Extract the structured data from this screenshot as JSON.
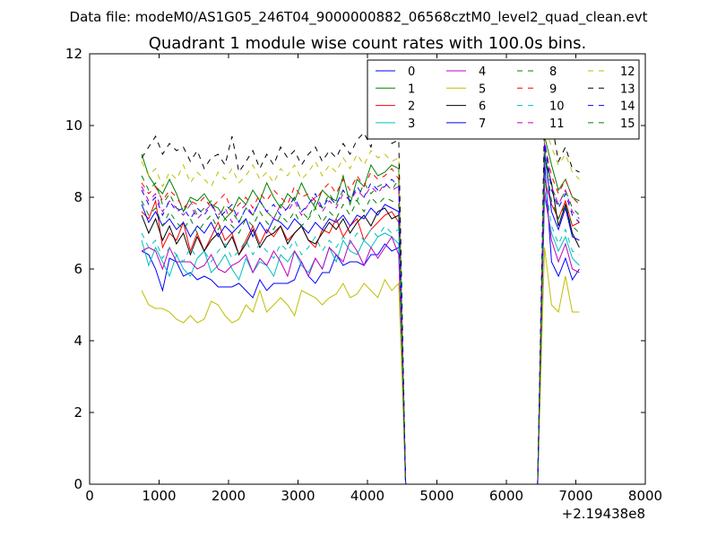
{
  "figure": {
    "suptitle": "Data file: modeM0/AS1G05_246T04_9000000882_06568cztM0_level2_quad_clean.evt",
    "title": "Quadrant 1 module wise count rates with 100.0s bins."
  },
  "chart_data": {
    "type": "line",
    "title": "Quadrant 1 module wise count rates with 100.0s bins.",
    "xlabel": "",
    "ylabel": "",
    "xlim": [
      0,
      8000
    ],
    "ylim": [
      0,
      12
    ],
    "x_ticks": [
      0,
      1000,
      2000,
      3000,
      4000,
      5000,
      6000,
      7000,
      8000
    ],
    "y_ticks": [
      0,
      2,
      4,
      6,
      8,
      10,
      12
    ],
    "x_offset_label": "+2.19438e8",
    "grid": false,
    "legend": {
      "placement": "top-right",
      "columns": 4
    },
    "x": [
      750,
      850,
      950,
      1050,
      1150,
      1250,
      1350,
      1450,
      1550,
      1650,
      1750,
      1850,
      1950,
      2050,
      2150,
      2250,
      2350,
      2450,
      2550,
      2650,
      2750,
      2850,
      2950,
      3050,
      3150,
      3250,
      3350,
      3450,
      3550,
      3650,
      3750,
      3850,
      3950,
      4050,
      4150,
      4250,
      4350,
      4450,
      4550,
      4650,
      4750,
      4850,
      4950,
      5050,
      5150,
      5250,
      5350,
      5450,
      5550,
      5650,
      5750,
      5850,
      5950,
      6050,
      6150,
      6250,
      6350,
      6450,
      6550,
      6650,
      6750,
      6850,
      6950,
      7050
    ],
    "series": [
      {
        "name": "0",
        "color": "#0000ff",
        "dash": "solid",
        "values": [
          6.5,
          6.4,
          6.0,
          5.4,
          6.3,
          6.2,
          5.8,
          5.9,
          5.7,
          5.8,
          5.7,
          5.5,
          5.5,
          5.5,
          5.6,
          5.4,
          5.2,
          5.7,
          5.4,
          5.6,
          5.6,
          5.6,
          5.7,
          6.2,
          5.8,
          5.6,
          5.9,
          5.9,
          6.4,
          6.1,
          6.2,
          6.2,
          6.1,
          6.4,
          6.4,
          6.7,
          6.5,
          6.6,
          0,
          0,
          0,
          0,
          0,
          0,
          0,
          0,
          0,
          0,
          0,
          0,
          0,
          0,
          0,
          0,
          0,
          0,
          0,
          0,
          9.0,
          6.2,
          5.8,
          6.3,
          5.7,
          6.0
        ]
      },
      {
        "name": "1",
        "color": "#008000",
        "dash": "solid",
        "values": [
          9.2,
          8.6,
          8.3,
          8.1,
          8.5,
          8.1,
          7.6,
          8.0,
          7.9,
          8.1,
          7.8,
          7.7,
          7.4,
          7.6,
          8.0,
          7.8,
          8.2,
          7.9,
          8.4,
          8.0,
          7.7,
          8.1,
          7.9,
          8.4,
          8.0,
          7.7,
          8.2,
          8.0,
          7.9,
          8.6,
          7.8,
          8.5,
          8.3,
          8.9,
          8.6,
          8.7,
          8.9,
          8.8,
          0,
          0,
          0,
          0,
          0,
          0,
          0,
          0,
          0,
          0,
          0,
          0,
          0,
          0,
          0,
          0,
          0,
          0,
          0,
          0,
          9.7,
          8.9,
          8.2,
          8.5,
          8.0,
          7.9
        ]
      },
      {
        "name": "2",
        "color": "#ff0000",
        "dash": "solid",
        "values": [
          7.6,
          7.4,
          7.9,
          6.6,
          7.0,
          6.8,
          7.3,
          6.5,
          7.0,
          6.5,
          6.9,
          7.3,
          6.8,
          7.0,
          6.4,
          6.8,
          7.2,
          6.7,
          7.1,
          6.9,
          7.2,
          6.8,
          7.0,
          7.2,
          6.8,
          6.6,
          7.1,
          7.0,
          7.4,
          6.9,
          7.2,
          7.4,
          6.8,
          7.1,
          7.3,
          7.5,
          7.6,
          7.3,
          0,
          0,
          0,
          0,
          0,
          0,
          0,
          0,
          0,
          0,
          0,
          0,
          0,
          0,
          0,
          0,
          0,
          0,
          0,
          0,
          8.5,
          7.8,
          7.4,
          7.9,
          7.2,
          7.3
        ]
      },
      {
        "name": "3",
        "color": "#00bfbf",
        "dash": "solid",
        "values": [
          6.8,
          6.1,
          6.6,
          6.2,
          5.8,
          6.4,
          6.0,
          5.8,
          6.3,
          6.5,
          5.9,
          6.1,
          6.4,
          6.0,
          5.7,
          6.3,
          5.9,
          6.2,
          6.1,
          5.8,
          6.4,
          6.2,
          6.5,
          6.1,
          5.9,
          6.3,
          6.0,
          6.6,
          6.2,
          6.8,
          6.5,
          6.4,
          6.8,
          6.6,
          6.9,
          7.0,
          6.9,
          6.7,
          0,
          0,
          0,
          0,
          0,
          0,
          0,
          0,
          0,
          0,
          0,
          0,
          0,
          0,
          0,
          0,
          0,
          0,
          0,
          0,
          8.0,
          7.0,
          6.5,
          6.9,
          6.3,
          6.1
        ]
      },
      {
        "name": "4",
        "color": "#bf00bf",
        "dash": "solid",
        "values": [
          6.5,
          6.6,
          6.5,
          6.0,
          6.6,
          6.2,
          6.2,
          6.2,
          6.0,
          6.1,
          6.4,
          6.0,
          5.9,
          6.1,
          6.2,
          6.4,
          5.9,
          6.3,
          6.1,
          6.5,
          6.2,
          5.8,
          6.5,
          6.2,
          5.8,
          6.3,
          6.0,
          6.6,
          6.4,
          6.2,
          6.8,
          6.5,
          6.1,
          6.6,
          6.3,
          6.6,
          6.9,
          6.4,
          0,
          0,
          0,
          0,
          0,
          0,
          0,
          0,
          0,
          0,
          0,
          0,
          0,
          0,
          0,
          0,
          0,
          0,
          0,
          0,
          8.2,
          6.8,
          6.2,
          6.7,
          6.0,
          5.9
        ]
      },
      {
        "name": "5",
        "color": "#bfbf00",
        "dash": "solid",
        "values": [
          5.4,
          5.0,
          4.9,
          4.9,
          4.8,
          4.6,
          4.5,
          4.7,
          4.5,
          4.6,
          5.1,
          5.0,
          4.7,
          4.5,
          4.6,
          5.0,
          4.8,
          5.4,
          4.8,
          5.0,
          5.2,
          5.0,
          4.7,
          5.4,
          5.3,
          5.2,
          5.0,
          5.2,
          5.3,
          5.6,
          5.2,
          5.3,
          5.6,
          5.4,
          5.2,
          5.7,
          5.4,
          5.6,
          0,
          0,
          0,
          0,
          0,
          0,
          0,
          0,
          0,
          0,
          0,
          0,
          0,
          0,
          0,
          0,
          0,
          0,
          0,
          0,
          6.6,
          5.0,
          4.8,
          5.8,
          4.8,
          4.8
        ]
      },
      {
        "name": "6",
        "color": "#000000",
        "dash": "solid",
        "values": [
          7.5,
          7.0,
          7.4,
          6.8,
          7.2,
          6.7,
          7.0,
          6.4,
          6.9,
          6.5,
          6.8,
          7.0,
          6.6,
          6.9,
          6.4,
          6.7,
          7.1,
          6.6,
          6.9,
          7.0,
          7.2,
          6.7,
          7.0,
          7.2,
          6.8,
          6.7,
          7.0,
          7.3,
          7.1,
          7.4,
          7.0,
          7.3,
          7.5,
          7.2,
          7.6,
          7.7,
          7.4,
          7.5,
          0,
          0,
          0,
          0,
          0,
          0,
          0,
          0,
          0,
          0,
          0,
          0,
          0,
          0,
          0,
          0,
          0,
          0,
          0,
          0,
          9.1,
          8.4,
          7.2,
          7.8,
          7.0,
          6.6
        ]
      },
      {
        "name": "7",
        "color": "#0000ff",
        "dash": "solid",
        "values": [
          7.8,
          7.3,
          7.6,
          7.2,
          7.4,
          7.1,
          7.3,
          6.9,
          7.2,
          7.0,
          7.3,
          6.9,
          7.2,
          7.0,
          7.2,
          7.4,
          6.9,
          7.3,
          7.0,
          7.4,
          7.3,
          7.1,
          7.4,
          7.2,
          7.0,
          7.3,
          7.1,
          7.4,
          7.3,
          7.5,
          7.2,
          7.5,
          7.4,
          7.7,
          7.5,
          7.8,
          7.7,
          7.6,
          0,
          0,
          0,
          0,
          0,
          0,
          0,
          0,
          0,
          0,
          0,
          0,
          0,
          0,
          0,
          0,
          0,
          0,
          0,
          0,
          9.3,
          7.6,
          7.1,
          7.7,
          6.9,
          6.8
        ]
      },
      {
        "name": "8",
        "color": "#008000",
        "dash": "dashed",
        "values": [
          8.6,
          8.2,
          8.4,
          7.8,
          8.1,
          7.7,
          7.6,
          7.9,
          7.5,
          7.7,
          7.9,
          7.4,
          7.8,
          7.6,
          7.3,
          7.7,
          7.5,
          7.9,
          7.6,
          7.4,
          7.8,
          7.7,
          8.0,
          7.6,
          7.4,
          7.9,
          7.7,
          8.1,
          7.8,
          8.2,
          8.0,
          7.9,
          8.4,
          8.1,
          8.3,
          8.4,
          8.2,
          8.5,
          0,
          0,
          0,
          0,
          0,
          0,
          0,
          0,
          0,
          0,
          0,
          0,
          0,
          0,
          0,
          0,
          0,
          0,
          0,
          0,
          9.4,
          8.3,
          7.8,
          8.2,
          7.7,
          7.5
        ]
      },
      {
        "name": "9",
        "color": "#ff0000",
        "dash": "dashed",
        "values": [
          8.4,
          8.1,
          8.3,
          7.9,
          8.2,
          8.0,
          7.7,
          7.9,
          7.8,
          8.0,
          7.7,
          7.9,
          8.1,
          7.6,
          7.8,
          8.0,
          7.7,
          8.1,
          7.9,
          8.2,
          8.0,
          7.8,
          8.3,
          8.0,
          8.1,
          7.9,
          8.2,
          8.4,
          8.1,
          8.5,
          8.2,
          8.6,
          8.3,
          8.7,
          8.5,
          8.6,
          8.8,
          8.5,
          0,
          0,
          0,
          0,
          0,
          0,
          0,
          0,
          0,
          0,
          0,
          0,
          0,
          0,
          0,
          0,
          0,
          0,
          0,
          0,
          9.5,
          8.6,
          8.1,
          8.5,
          8.0,
          7.8
        ]
      },
      {
        "name": "10",
        "color": "#00bfbf",
        "dash": "dashed",
        "values": [
          7.0,
          6.6,
          6.8,
          6.3,
          6.6,
          6.4,
          6.2,
          6.6,
          6.3,
          6.5,
          6.2,
          6.5,
          6.7,
          6.3,
          6.5,
          6.8,
          6.4,
          6.7,
          6.5,
          6.3,
          6.7,
          6.5,
          6.8,
          6.4,
          6.6,
          6.9,
          6.5,
          6.8,
          6.6,
          6.9,
          6.7,
          7.0,
          6.8,
          7.1,
          6.9,
          7.2,
          7.0,
          7.1,
          0,
          0,
          0,
          0,
          0,
          0,
          0,
          0,
          0,
          0,
          0,
          0,
          0,
          0,
          0,
          0,
          0,
          0,
          0,
          0,
          8.5,
          7.2,
          6.7,
          7.1,
          6.5,
          6.4
        ]
      },
      {
        "name": "11",
        "color": "#bf00bf",
        "dash": "dashed",
        "values": [
          8.3,
          7.9,
          8.1,
          7.6,
          7.9,
          7.7,
          7.5,
          7.8,
          7.4,
          7.6,
          7.8,
          7.5,
          7.7,
          7.3,
          7.6,
          7.8,
          7.5,
          7.9,
          7.6,
          7.4,
          7.8,
          7.6,
          7.9,
          7.5,
          7.8,
          8.0,
          7.6,
          7.9,
          7.7,
          8.1,
          7.9,
          8.2,
          8.0,
          8.3,
          8.1,
          8.4,
          8.2,
          8.3,
          0,
          0,
          0,
          0,
          0,
          0,
          0,
          0,
          0,
          0,
          0,
          0,
          0,
          0,
          0,
          0,
          0,
          0,
          0,
          0,
          9.6,
          8.3,
          7.8,
          8.2,
          7.6,
          7.4
        ]
      },
      {
        "name": "12",
        "color": "#bfbf00",
        "dash": "dashed",
        "values": [
          9.0,
          8.6,
          8.8,
          8.3,
          8.7,
          8.5,
          8.9,
          8.4,
          8.7,
          8.5,
          8.3,
          8.7,
          8.5,
          8.8,
          8.4,
          8.6,
          8.9,
          8.5,
          8.7,
          8.4,
          8.8,
          8.6,
          8.9,
          8.5,
          8.7,
          9.0,
          8.6,
          8.9,
          8.7,
          9.1,
          8.8,
          9.2,
          8.9,
          9.3,
          9.1,
          9.2,
          9.0,
          9.1,
          0,
          0,
          0,
          0,
          0,
          0,
          0,
          0,
          0,
          0,
          0,
          0,
          0,
          0,
          0,
          0,
          0,
          0,
          0,
          0,
          10.0,
          9.4,
          8.9,
          9.2,
          8.7,
          8.5
        ]
      },
      {
        "name": "13",
        "color": "#000000",
        "dash": "dashed",
        "values": [
          9.1,
          9.4,
          9.7,
          9.2,
          9.5,
          9.3,
          9.4,
          9.0,
          9.3,
          8.8,
          9.1,
          9.2,
          8.9,
          9.7,
          8.7,
          9.0,
          9.3,
          8.8,
          9.2,
          8.9,
          9.4,
          9.1,
          9.3,
          8.9,
          9.2,
          9.4,
          9.0,
          9.3,
          9.1,
          9.5,
          9.2,
          9.6,
          9.8,
          9.4,
          10.1,
          9.7,
          9.5,
          9.6,
          0,
          0,
          0,
          0,
          0,
          0,
          0,
          0,
          0,
          0,
          0,
          0,
          0,
          0,
          0,
          0,
          0,
          0,
          0,
          0,
          10.3,
          10.1,
          9.0,
          9.4,
          8.8,
          8.7
        ]
      },
      {
        "name": "14",
        "color": "#0000ff",
        "dash": "dashed",
        "values": [
          8.2,
          7.8,
          8.0,
          7.5,
          7.9,
          7.6,
          7.7,
          7.4,
          7.7,
          7.5,
          7.8,
          7.4,
          7.6,
          7.8,
          7.3,
          7.7,
          7.5,
          7.9,
          7.6,
          7.8,
          7.5,
          7.7,
          8.0,
          7.6,
          7.8,
          8.1,
          7.7,
          8.0,
          7.8,
          8.2,
          7.9,
          8.3,
          8.0,
          8.4,
          8.2,
          8.3,
          8.5,
          8.3,
          0,
          0,
          0,
          0,
          0,
          0,
          0,
          0,
          0,
          0,
          0,
          0,
          0,
          0,
          0,
          0,
          0,
          0,
          0,
          0,
          9.5,
          8.2,
          7.7,
          8.1,
          7.5,
          7.3
        ]
      },
      {
        "name": "15",
        "color": "#008000",
        "dash": "dashed",
        "values": [
          7.9,
          7.5,
          7.7,
          7.2,
          7.6,
          7.3,
          7.1,
          7.4,
          7.0,
          7.3,
          7.5,
          7.1,
          7.4,
          7.2,
          7.0,
          7.4,
          7.2,
          7.6,
          7.3,
          7.1,
          7.5,
          7.3,
          7.6,
          7.2,
          7.4,
          7.7,
          7.3,
          7.6,
          7.4,
          7.8,
          7.5,
          7.9,
          7.6,
          8.0,
          7.8,
          8.0,
          7.9,
          7.8,
          0,
          0,
          0,
          0,
          0,
          0,
          0,
          0,
          0,
          0,
          0,
          0,
          0,
          0,
          0,
          0,
          0,
          0,
          0,
          0,
          9.2,
          7.9,
          7.4,
          7.8,
          7.2,
          7.0
        ]
      }
    ]
  }
}
